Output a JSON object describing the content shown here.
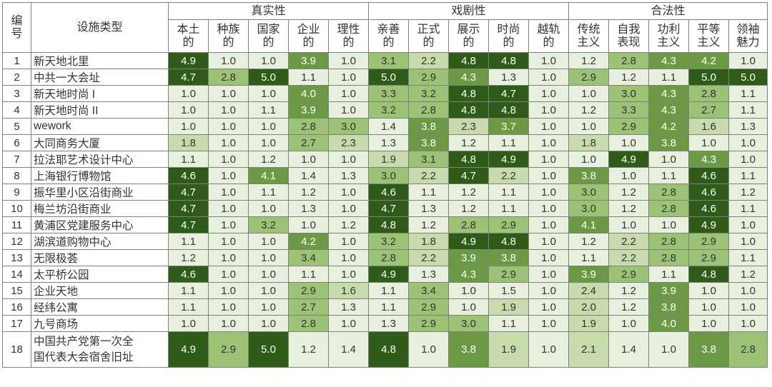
{
  "header": {
    "index_label": [
      "编",
      "号"
    ],
    "type_label": "设施类型"
  },
  "groups": [
    {
      "name": "真实性",
      "span": 5
    },
    {
      "name": "戏剧性",
      "span": 5
    },
    {
      "name": "合法性",
      "span": 5
    }
  ],
  "metrics": [
    [
      "本土",
      "的"
    ],
    [
      "种族",
      "的"
    ],
    [
      "国家",
      "的"
    ],
    [
      "企业",
      "的"
    ],
    [
      "理性",
      "的"
    ],
    [
      "亲善",
      "的"
    ],
    [
      "正式",
      "的"
    ],
    [
      "展示",
      "的"
    ],
    [
      "时尚",
      "的"
    ],
    [
      "越轨",
      "的"
    ],
    [
      "传统",
      "主义"
    ],
    [
      "自我",
      "表现"
    ],
    [
      "功利",
      "主义"
    ],
    [
      "平等",
      "主义"
    ],
    [
      "领袖",
      "魅力"
    ]
  ],
  "colors": {
    "scale": [
      "#e7f0dc",
      "#c7dbac",
      "#9cc275",
      "#6c9a44",
      "#2f5b19"
    ],
    "text_light": "#ffffff",
    "text_dark": "#333333",
    "border": "#7f7f7f"
  },
  "chart_data": {
    "type": "heatmap",
    "value_range": [
      1.0,
      5.0
    ],
    "rows": [
      {
        "no": "1",
        "name": "新天地北里",
        "values": [
          "4.9",
          "1.0",
          "1.0",
          "3.9",
          "1.0",
          "3.1",
          "2.2",
          "4.8",
          "4.8",
          "1.0",
          "1.2",
          "2.8",
          "4.3",
          "4.2",
          "1.0"
        ]
      },
      {
        "no": "2",
        "name": "中共一大会址",
        "values": [
          "4.7",
          "2.8",
          "5.0",
          "1.1",
          "1.0",
          "5.0",
          "2.9",
          "4.3",
          "1.3",
          "1.0",
          "2.9",
          "1.2",
          "1.1",
          "5.0",
          "5.0"
        ]
      },
      {
        "no": "3",
        "name": "新天地时尚 I",
        "values": [
          "1.0",
          "1.0",
          "1.0",
          "4.0",
          "1.0",
          "3.3",
          "3.2",
          "4.8",
          "4.7",
          "1.0",
          "1.0",
          "3.0",
          "4.3",
          "2.8",
          "1.1"
        ]
      },
      {
        "no": "4",
        "name": "新天地时尚 II",
        "values": [
          "1.0",
          "1.0",
          "1.1",
          "3.9",
          "1.0",
          "3.2",
          "2.8",
          "4.8",
          "4.8",
          "1.0",
          "1.2",
          "3.3",
          "4.3",
          "2.7",
          "1.1"
        ]
      },
      {
        "no": "5",
        "name": "wework",
        "values": [
          "1.0",
          "1.0",
          "1.0",
          "2.8",
          "3.0",
          "1.4",
          "3.8",
          "2.3",
          "3.7",
          "1.0",
          "1.0",
          "2.9",
          "4.2",
          "1.6",
          "1.3"
        ]
      },
      {
        "no": "6",
        "name": "大同商务大厦",
        "values": [
          "1.8",
          "1.0",
          "1.0",
          "2.7",
          "2.3",
          "1.3",
          "3.8",
          "1.2",
          "1.1",
          "1.0",
          "1.8",
          "1.0",
          "3.8",
          "1.0",
          "1.0"
        ]
      },
      {
        "no": "7",
        "name": "拉法耶艺术设计中心",
        "values": [
          "1.1",
          "1.0",
          "1.2",
          "1.0",
          "1.0",
          "1.9",
          "3.1",
          "4.8",
          "4.9",
          "1.0",
          "1.0",
          "4.9",
          "1.0",
          "4.3",
          "1.0"
        ]
      },
      {
        "no": "8",
        "name": "上海银行博物馆",
        "values": [
          "4.6",
          "1.0",
          "4.1",
          "1.4",
          "1.3",
          "3.0",
          "2.2",
          "4.7",
          "2.2",
          "1.0",
          "3.8",
          "1.0",
          "1.1",
          "4.6",
          "1.1"
        ]
      },
      {
        "no": "9",
        "name": "振华里小区沿街商业",
        "values": [
          "4.7",
          "1.0",
          "1.1",
          "1.2",
          "1.0",
          "4.6",
          "1.1",
          "1.2",
          "1.1",
          "1.0",
          "3.0",
          "1.2",
          "2.8",
          "4.6",
          "1.2"
        ]
      },
      {
        "no": "10",
        "name": "梅兰坊沿街商业",
        "values": [
          "4.7",
          "1.0",
          "1.0",
          "1.3",
          "1.0",
          "4.7",
          "1.3",
          "1.2",
          "1.1",
          "1.0",
          "3.0",
          "1.2",
          "2.8",
          "4.6",
          "1.1"
        ]
      },
      {
        "no": "11",
        "name": "黄浦区党建服务中心",
        "values": [
          "4.7",
          "1.0",
          "3.2",
          "1.0",
          "1.2",
          "4.8",
          "1.2",
          "2.8",
          "2.9",
          "1.0",
          "4.1",
          "1.0",
          "1.0",
          "4.9",
          "1.0"
        ]
      },
      {
        "no": "12",
        "name": "湖滨道购物中心",
        "values": [
          "1.1",
          "1.0",
          "1.0",
          "4.2",
          "1.0",
          "3.2",
          "1.8",
          "4.9",
          "4.8",
          "1.0",
          "1.2",
          "2.2",
          "2.8",
          "2.9",
          "1.0"
        ]
      },
      {
        "no": "13",
        "name": "无限极荟",
        "values": [
          "1.2",
          "1.0",
          "1.0",
          "3.4",
          "1.0",
          "2.8",
          "2.2",
          "3.9",
          "3.8",
          "1.0",
          "1.1",
          "2.2",
          "2.8",
          "2.9",
          "1.1"
        ]
      },
      {
        "no": "14",
        "name": "太平桥公园",
        "values": [
          "4.6",
          "1.0",
          "1.0",
          "1.1",
          "1.0",
          "4.9",
          "1.3",
          "4.3",
          "2.9",
          "1.0",
          "3.9",
          "2.9",
          "1.1",
          "4.8",
          "1.2"
        ]
      },
      {
        "no": "15",
        "name": "企业天地",
        "values": [
          "1.1",
          "1.0",
          "1.0",
          "2.9",
          "1.6",
          "1.1",
          "3.4",
          "1.0",
          "1.5",
          "1.0",
          "2.4",
          "1.2",
          "3.9",
          "1.0",
          "1.0"
        ]
      },
      {
        "no": "16",
        "name": "经纬公寓",
        "values": [
          "1.1",
          "1.0",
          "1.0",
          "2.7",
          "1.3",
          "1.1",
          "2.9",
          "1.0",
          "1.9",
          "1.0",
          "2.0",
          "1.2",
          "3.8",
          "1.0",
          "1.0"
        ]
      },
      {
        "no": "17",
        "name": "九号商场",
        "values": [
          "1.0",
          "1.0",
          "1.0",
          "2.8",
          "1.0",
          "1.3",
          "2.9",
          "3.0",
          "1.1",
          "1.0",
          "1.9",
          "1.0",
          "4.0",
          "1.0",
          "1.0"
        ]
      },
      {
        "no": "18",
        "name": [
          "中国共产党第一次全",
          "国代表大会宿舍旧址"
        ],
        "values": [
          "4.9",
          "2.9",
          "5.0",
          "1.2",
          "1.4",
          "4.8",
          "1.0",
          "3.8",
          "1.9",
          "1.0",
          "2.1",
          "1.4",
          "1.0",
          "3.8",
          "2.8"
        ]
      }
    ]
  }
}
